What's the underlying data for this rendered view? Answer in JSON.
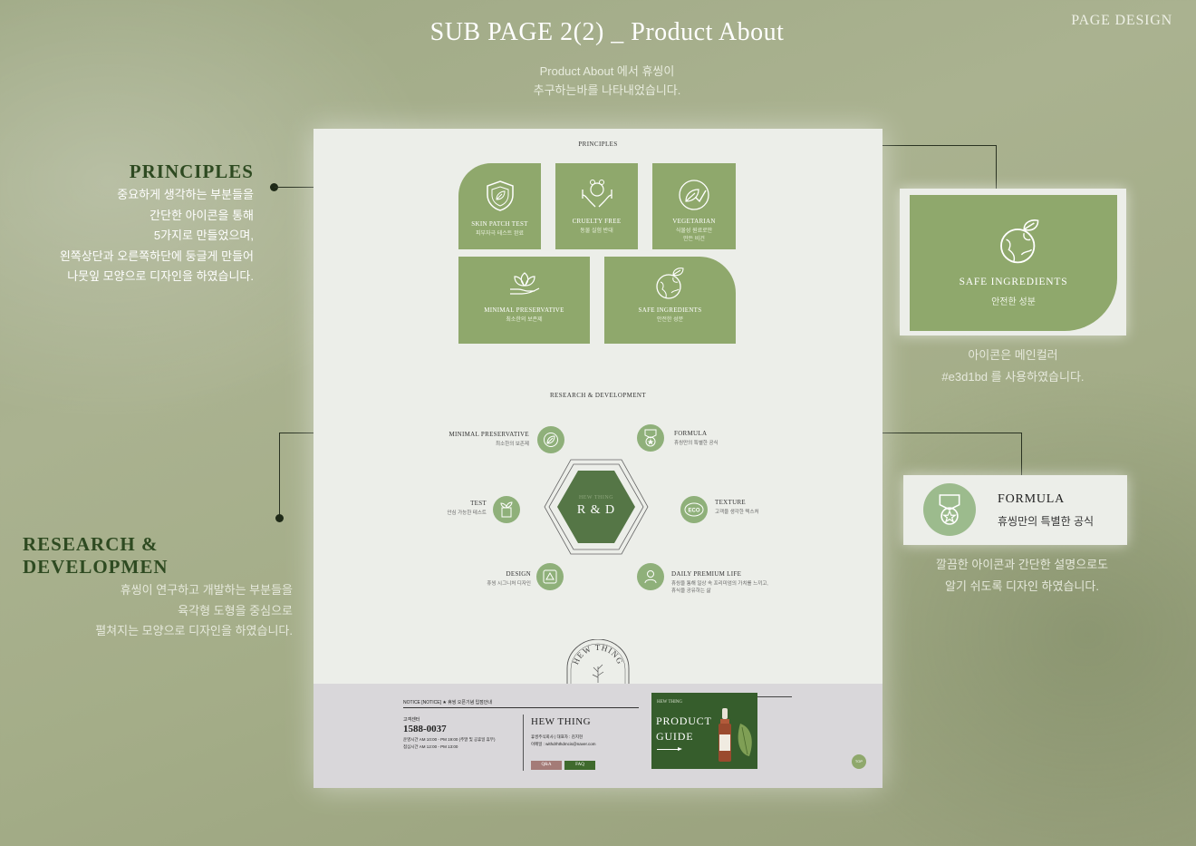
{
  "header": {
    "title": "SUB PAGE 2(2) _ Product About",
    "subtitle_line1": "Product About 에서 휴씽이",
    "subtitle_line2": "추구하는바를 나타내었습니다.",
    "page_design": "PAGE DESIGN"
  },
  "principles_anno": {
    "title": "PRINCIPLES",
    "lines": [
      "중요하게 생각하는 부분들을",
      "간단한 아이콘을 통해",
      "5가지로 만들었으며,",
      "왼쪽상단과 오른쪽하단에 둥글게 만들어",
      "나뭇잎 모양으로 디자인을 하였습니다."
    ]
  },
  "rd_anno": {
    "title": "RESEARCH & DEVELOPMEN",
    "lines": [
      "휴씽이 연구하고 개발하는 부분들을",
      "육각형 도형을 중심으로",
      "펼쳐지는 모양으로 디자인을 하였습니다."
    ]
  },
  "safe_anno": {
    "lines": [
      "아이콘은 메인컬러",
      "#e3d1bd 를 사용하였습니다."
    ]
  },
  "formula_anno": {
    "lines": [
      "깔끔한 아이콘과 간단한 설명으로도",
      "알기 쉬도록 디자인 하였습니다."
    ]
  },
  "sheet": {
    "principles_label": "PRINCIPLES",
    "cards": [
      {
        "title": "SKIN PATCH TEST",
        "sub": "피부자극 테스트 완료",
        "icon": "shield-leaf-icon"
      },
      {
        "title": "CRUELTY FREE",
        "sub": "동물 실험 반대",
        "icon": "hands-animal-icon"
      },
      {
        "title": "VEGETARIAN",
        "sub": "식물성 원료로만\n만든 비건",
        "icon": "leaf-check-icon"
      },
      {
        "title": "MINIMAL PRESERVATIVE",
        "sub": "최소한의 보존제",
        "icon": "hand-leaf-icon"
      },
      {
        "title": "SAFE INGREDIENTS",
        "sub": "안전한 성분",
        "icon": "earth-leaf-icon"
      }
    ],
    "rd_label": "RESEARCH & DEVELOPMENT",
    "hex_brand": "HEW THING",
    "hex_title": "R & D",
    "rd_items": {
      "minimal": {
        "title": "MINIMAL PRESERVATIVE",
        "sub": "최소한의 보존제"
      },
      "formula": {
        "title": "FORMULA",
        "sub": "휴씽만의 특별한 공식"
      },
      "test": {
        "title": "TEST",
        "sub": "안심 가능한 테스트"
      },
      "texture": {
        "title": "TEXTURE",
        "sub": "고객을 생각한 텍스처"
      },
      "design": {
        "title": "DESIGN",
        "sub": "휴씽 시그니처 디자인"
      },
      "daily": {
        "title": "DAILY PREMIUM LIFE",
        "sub1": "휴씽을 통해 일상 속 프리미엄의 가치를 느끼고,",
        "sub2": "휴식을 공유하는 삶"
      }
    },
    "seal_text": "HEW THING",
    "footer": {
      "notice": "NOTICE [NOTICE] ★ 휴씽 오픈기념 입점안내",
      "cs_label": "고객센터",
      "phone": "1588-0037",
      "hours1": "운영시간 AM 10:00 - PM 19:00 (주말 및 공휴일 휴무)",
      "hours2": "점심시간 AM 12:00 - PM 13:00",
      "brand": "HEW THING",
      "company": "휴씽주식회사 | 대표자 : 김지현",
      "email": "이메일 : withdrhthdmcis@naver.com",
      "qa_btn": "Q&A",
      "faq_btn": "FAQ",
      "banner_brand": "HEW THING",
      "banner_line1": "PRODUCT",
      "banner_line2": "GUIDE",
      "top_btn": "TOP"
    }
  },
  "safe_callout": {
    "title": "SAFE INGREDIENTS",
    "sub": "안전한 성분"
  },
  "formula_callout": {
    "title": "FORMULA",
    "sub": "휴씽만의 특별한 공식"
  },
  "colors": {
    "card_green": "#8fa86c",
    "hex_green": "#557646",
    "circle_green": "#8fb07a",
    "footer_bg": "#d9d7da"
  }
}
